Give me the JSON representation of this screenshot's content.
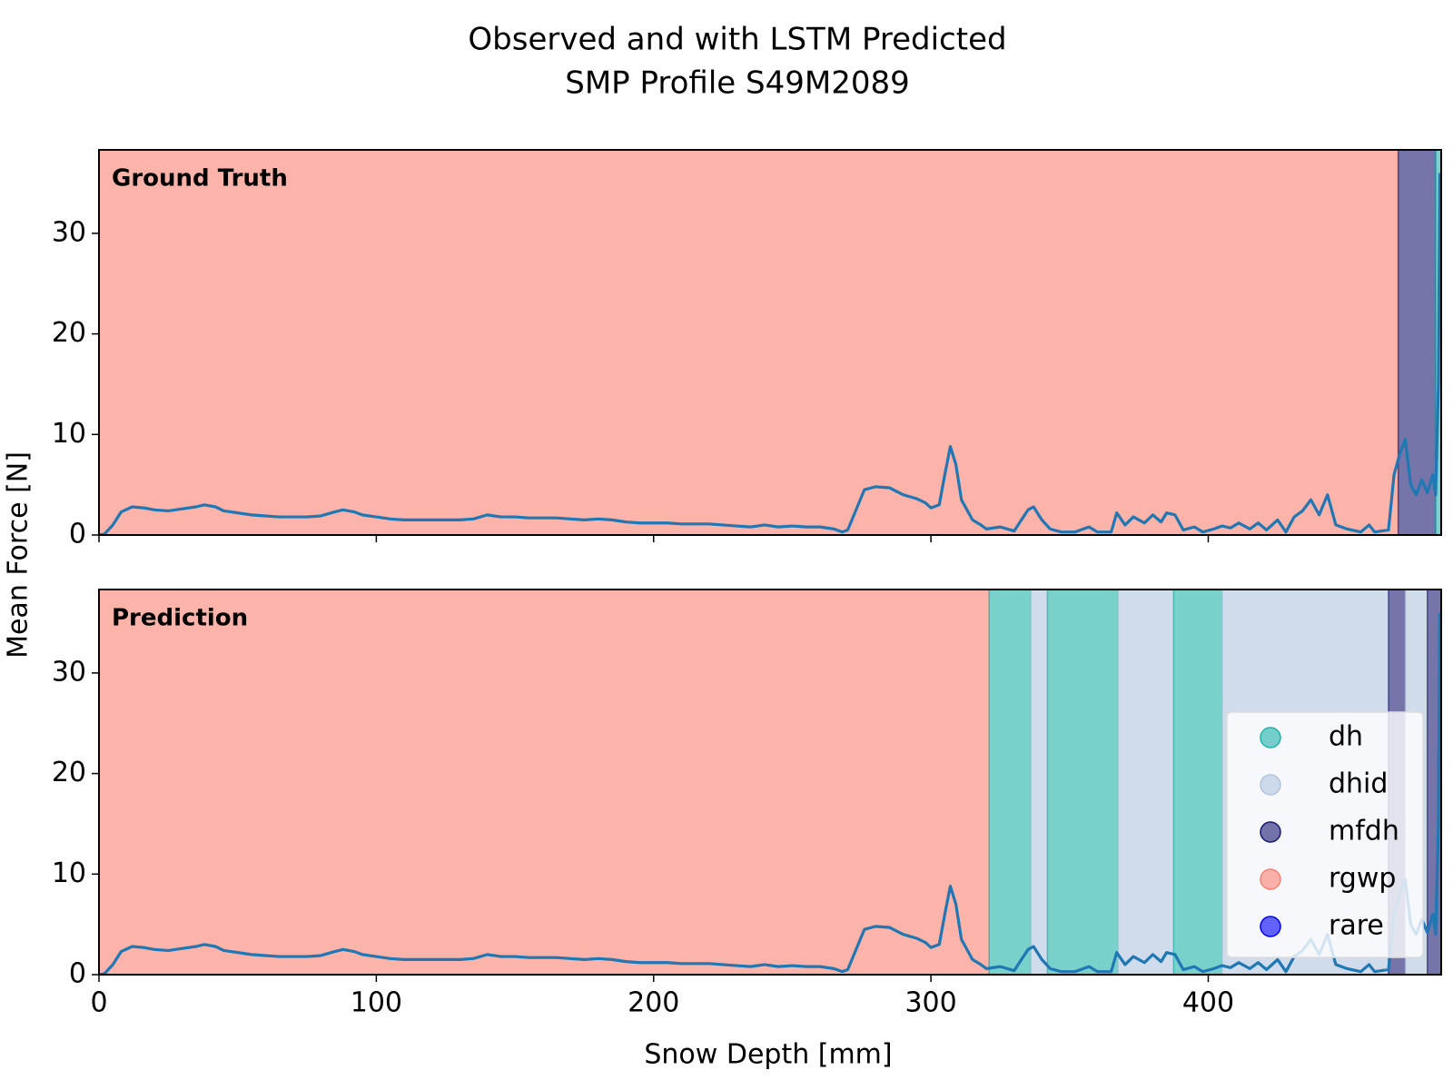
{
  "chart_data": {
    "type": "line",
    "title": [
      "Observed and with LSTM Predicted",
      "SMP Profile S49M2089"
    ],
    "xlabel": "Snow Depth [mm]",
    "ylabel": "Mean Force [N]",
    "x": [
      0,
      2,
      5,
      8,
      12,
      16,
      20,
      25,
      30,
      35,
      38,
      42,
      45,
      50,
      55,
      60,
      65,
      70,
      75,
      80,
      85,
      88,
      92,
      95,
      100,
      105,
      110,
      115,
      120,
      125,
      130,
      135,
      140,
      145,
      150,
      155,
      160,
      165,
      170,
      175,
      180,
      185,
      190,
      195,
      200,
      205,
      210,
      215,
      220,
      225,
      230,
      235,
      240,
      245,
      250,
      255,
      260,
      265,
      268,
      270,
      273,
      276,
      280,
      285,
      290,
      295,
      298,
      300,
      303,
      305,
      307,
      309,
      311,
      315,
      318,
      320,
      325,
      330,
      335,
      337,
      340,
      343,
      347,
      352,
      357,
      360,
      365,
      367,
      370,
      373,
      377,
      380,
      383,
      385,
      388,
      391,
      395,
      398,
      402,
      405,
      408,
      411,
      415,
      418,
      421,
      425,
      428,
      431,
      434,
      437,
      440,
      443,
      446,
      450,
      455,
      458,
      460,
      465,
      467,
      469,
      471,
      473,
      475,
      477,
      479,
      481,
      482,
      483,
      483.5
    ],
    "values": [
      0,
      0.1,
      1,
      2.3,
      2.8,
      2.7,
      2.5,
      2.4,
      2.6,
      2.8,
      3.0,
      2.8,
      2.4,
      2.2,
      2.0,
      1.9,
      1.8,
      1.8,
      1.8,
      1.9,
      2.3,
      2.5,
      2.3,
      2.0,
      1.8,
      1.6,
      1.5,
      1.5,
      1.5,
      1.5,
      1.5,
      1.6,
      2.0,
      1.8,
      1.8,
      1.7,
      1.7,
      1.7,
      1.6,
      1.5,
      1.6,
      1.5,
      1.3,
      1.2,
      1.2,
      1.2,
      1.1,
      1.1,
      1.1,
      1.0,
      0.9,
      0.8,
      1.0,
      0.8,
      0.9,
      0.8,
      0.8,
      0.6,
      0.3,
      0.5,
      2.5,
      4.5,
      4.8,
      4.7,
      4.0,
      3.6,
      3.2,
      2.7,
      3.0,
      6.0,
      8.8,
      7.0,
      3.5,
      1.5,
      1.0,
      0.6,
      0.8,
      0.4,
      2.5,
      2.8,
      1.5,
      0.6,
      0.3,
      0.3,
      0.8,
      0.3,
      0.3,
      2.2,
      1.0,
      1.8,
      1.2,
      2.0,
      1.3,
      2.2,
      2.0,
      0.5,
      0.8,
      0.3,
      0.6,
      0.9,
      0.7,
      1.2,
      0.6,
      1.2,
      0.5,
      1.5,
      0.3,
      1.8,
      2.4,
      3.5,
      2.0,
      4.0,
      1.0,
      0.6,
      0.3,
      1.0,
      0.3,
      0.5,
      6.0,
      8.0,
      9.5,
      5.0,
      4.0,
      5.5,
      4.2,
      6.0,
      4.0,
      15,
      36
    ],
    "line_color": "#1f77b4",
    "xlim": [
      0,
      484
    ],
    "xticks": [
      0,
      100,
      200,
      300,
      400
    ],
    "ylim": [
      0,
      38.3
    ],
    "yticks": [
      0,
      10,
      20,
      30
    ],
    "span_alpha": 0.6,
    "legend": {
      "loc": "lower right",
      "entries": [
        {
          "name": "dh",
          "color": "#20b2aa"
        },
        {
          "name": "dhid",
          "color": "#b0c4de"
        },
        {
          "name": "mfdh",
          "color": "#191970"
        },
        {
          "name": "rgwp",
          "color": "#fa8072"
        },
        {
          "name": "rare",
          "color": "#0000ff"
        }
      ]
    },
    "panels": [
      {
        "label": "Ground Truth",
        "segments": [
          {
            "class": "rgwp",
            "start": 0,
            "end": 468.5
          },
          {
            "class": "mfdh",
            "start": 468.5,
            "end": 482
          },
          {
            "class": "dh",
            "start": 482,
            "end": 484
          }
        ]
      },
      {
        "label": "Prediction",
        "segments": [
          {
            "class": "rgwp",
            "start": 0,
            "end": 321
          },
          {
            "class": "dh",
            "start": 321,
            "end": 336
          },
          {
            "class": "dhid",
            "start": 336,
            "end": 342
          },
          {
            "class": "dh",
            "start": 342,
            "end": 367.5
          },
          {
            "class": "dhid",
            "start": 367.5,
            "end": 387.5
          },
          {
            "class": "dh",
            "start": 387.5,
            "end": 405
          },
          {
            "class": "dhid",
            "start": 405,
            "end": 465
          },
          {
            "class": "mfdh",
            "start": 465,
            "end": 471
          },
          {
            "class": "dhid",
            "start": 471,
            "end": 479
          },
          {
            "class": "mfdh",
            "start": 479,
            "end": 484
          }
        ]
      }
    ]
  }
}
